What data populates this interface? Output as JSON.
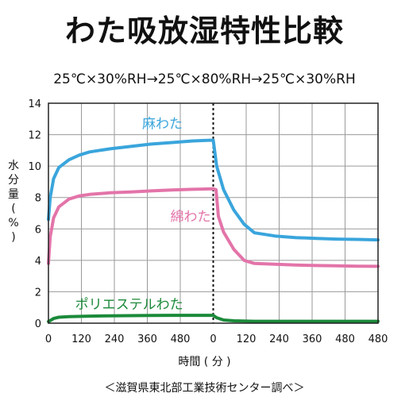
{
  "title": "わた吸放湿特性比較",
  "subtitle": "25℃×30%RH→25℃×80%RH→25℃×30%RH",
  "ylabel_chars": [
    "水",
    "分",
    "量",
    "(",
    "%",
    ")"
  ],
  "xlabel": "時間 ( 分 )",
  "source": "＜滋賀県東北部工業技術センター調べ＞",
  "chart_data": {
    "type": "line",
    "ylim": [
      0,
      14
    ],
    "yticks": [
      "0",
      "2",
      "4",
      "6",
      "8",
      "10",
      "12",
      "14"
    ],
    "xlim": [
      0,
      960
    ],
    "xticks": [
      "0",
      "120",
      "240",
      "360",
      "480",
      "0",
      "120",
      "240",
      "360",
      "480"
    ],
    "grid": true,
    "divider_x": 480,
    "series": [
      {
        "name": "麻わた",
        "color": "#3aa5dc",
        "x": [
          0,
          5,
          15,
          30,
          60,
          90,
          120,
          180,
          240,
          300,
          360,
          420,
          480,
          490,
          510,
          540,
          570,
          600,
          660,
          720,
          780,
          840,
          900,
          960
        ],
        "y": [
          6.6,
          8.0,
          9.2,
          9.9,
          10.4,
          10.7,
          10.9,
          11.1,
          11.25,
          11.4,
          11.5,
          11.6,
          11.65,
          10.0,
          8.5,
          7.2,
          6.3,
          5.75,
          5.55,
          5.45,
          5.4,
          5.35,
          5.33,
          5.3
        ]
      },
      {
        "name": "綿わた",
        "color": "#e374a9",
        "x": [
          0,
          5,
          15,
          30,
          60,
          90,
          120,
          180,
          240,
          300,
          360,
          420,
          480,
          488,
          495,
          510,
          540,
          570,
          600,
          660,
          720,
          780,
          840,
          900,
          960
        ],
        "y": [
          3.8,
          5.5,
          6.7,
          7.4,
          7.9,
          8.1,
          8.2,
          8.3,
          8.35,
          8.42,
          8.48,
          8.52,
          8.55,
          8.5,
          6.8,
          5.8,
          4.7,
          4.0,
          3.8,
          3.75,
          3.7,
          3.67,
          3.65,
          3.63,
          3.62
        ]
      },
      {
        "name": "ポリエステルわた",
        "color": "#1b8a3a",
        "x": [
          0,
          15,
          30,
          60,
          120,
          180,
          240,
          300,
          360,
          420,
          480,
          490,
          510,
          540,
          600,
          720,
          840,
          960
        ],
        "y": [
          0.1,
          0.3,
          0.38,
          0.42,
          0.45,
          0.47,
          0.48,
          0.49,
          0.5,
          0.5,
          0.5,
          0.35,
          0.2,
          0.15,
          0.12,
          0.12,
          0.12,
          0.12
        ]
      }
    ]
  }
}
